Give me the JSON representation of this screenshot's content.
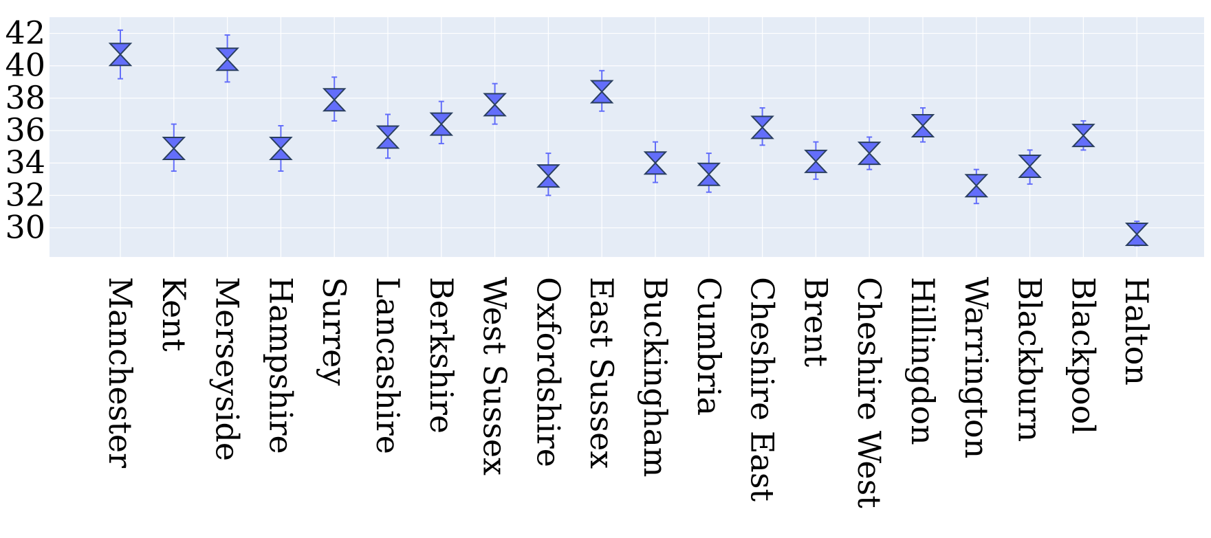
{
  "chart_data": {
    "type": "scatter",
    "marker": "hourglass",
    "categories": [
      "Manchester",
      "Kent",
      "Merseyside",
      "Hampshire",
      "Surrey",
      "Lancashire",
      "Berkshire",
      "West Sussex",
      "Oxfordshire",
      "East Sussex",
      "Buckingham",
      "Cumbria",
      "Cheshire East",
      "Brent",
      "Cheshire West",
      "Hillingdon",
      "Warrington",
      "Blackburn",
      "Blackpool",
      "Halton"
    ],
    "series": [
      {
        "values": [
          40.7,
          34.9,
          40.4,
          34.9,
          37.9,
          35.6,
          36.4,
          37.6,
          33.2,
          38.4,
          34.0,
          33.3,
          36.2,
          34.1,
          34.6,
          36.3,
          32.6,
          33.8,
          35.7,
          29.6
        ],
        "error_low": [
          39.2,
          33.5,
          39.0,
          33.5,
          36.6,
          34.3,
          35.2,
          36.4,
          32.0,
          37.2,
          32.8,
          32.2,
          35.1,
          33.0,
          33.6,
          35.3,
          31.5,
          32.7,
          34.8,
          28.9
        ],
        "error_high": [
          42.2,
          36.4,
          41.9,
          36.3,
          39.3,
          37.0,
          37.8,
          38.9,
          34.6,
          39.7,
          35.3,
          34.6,
          37.4,
          35.3,
          35.6,
          37.4,
          33.6,
          34.8,
          36.6,
          30.4
        ]
      }
    ],
    "yticks": [
      "30",
      "32",
      "34",
      "36",
      "38",
      "40",
      "42"
    ],
    "ylim": [
      28.2,
      43.0
    ],
    "grid": true,
    "legend": "none",
    "colors": {
      "plot_background": "#e5ecf6",
      "grid": "#ffffff",
      "marker_fill": "#636efa",
      "marker_edge": "#2a3f5f",
      "error_bar": "#636efa"
    }
  }
}
